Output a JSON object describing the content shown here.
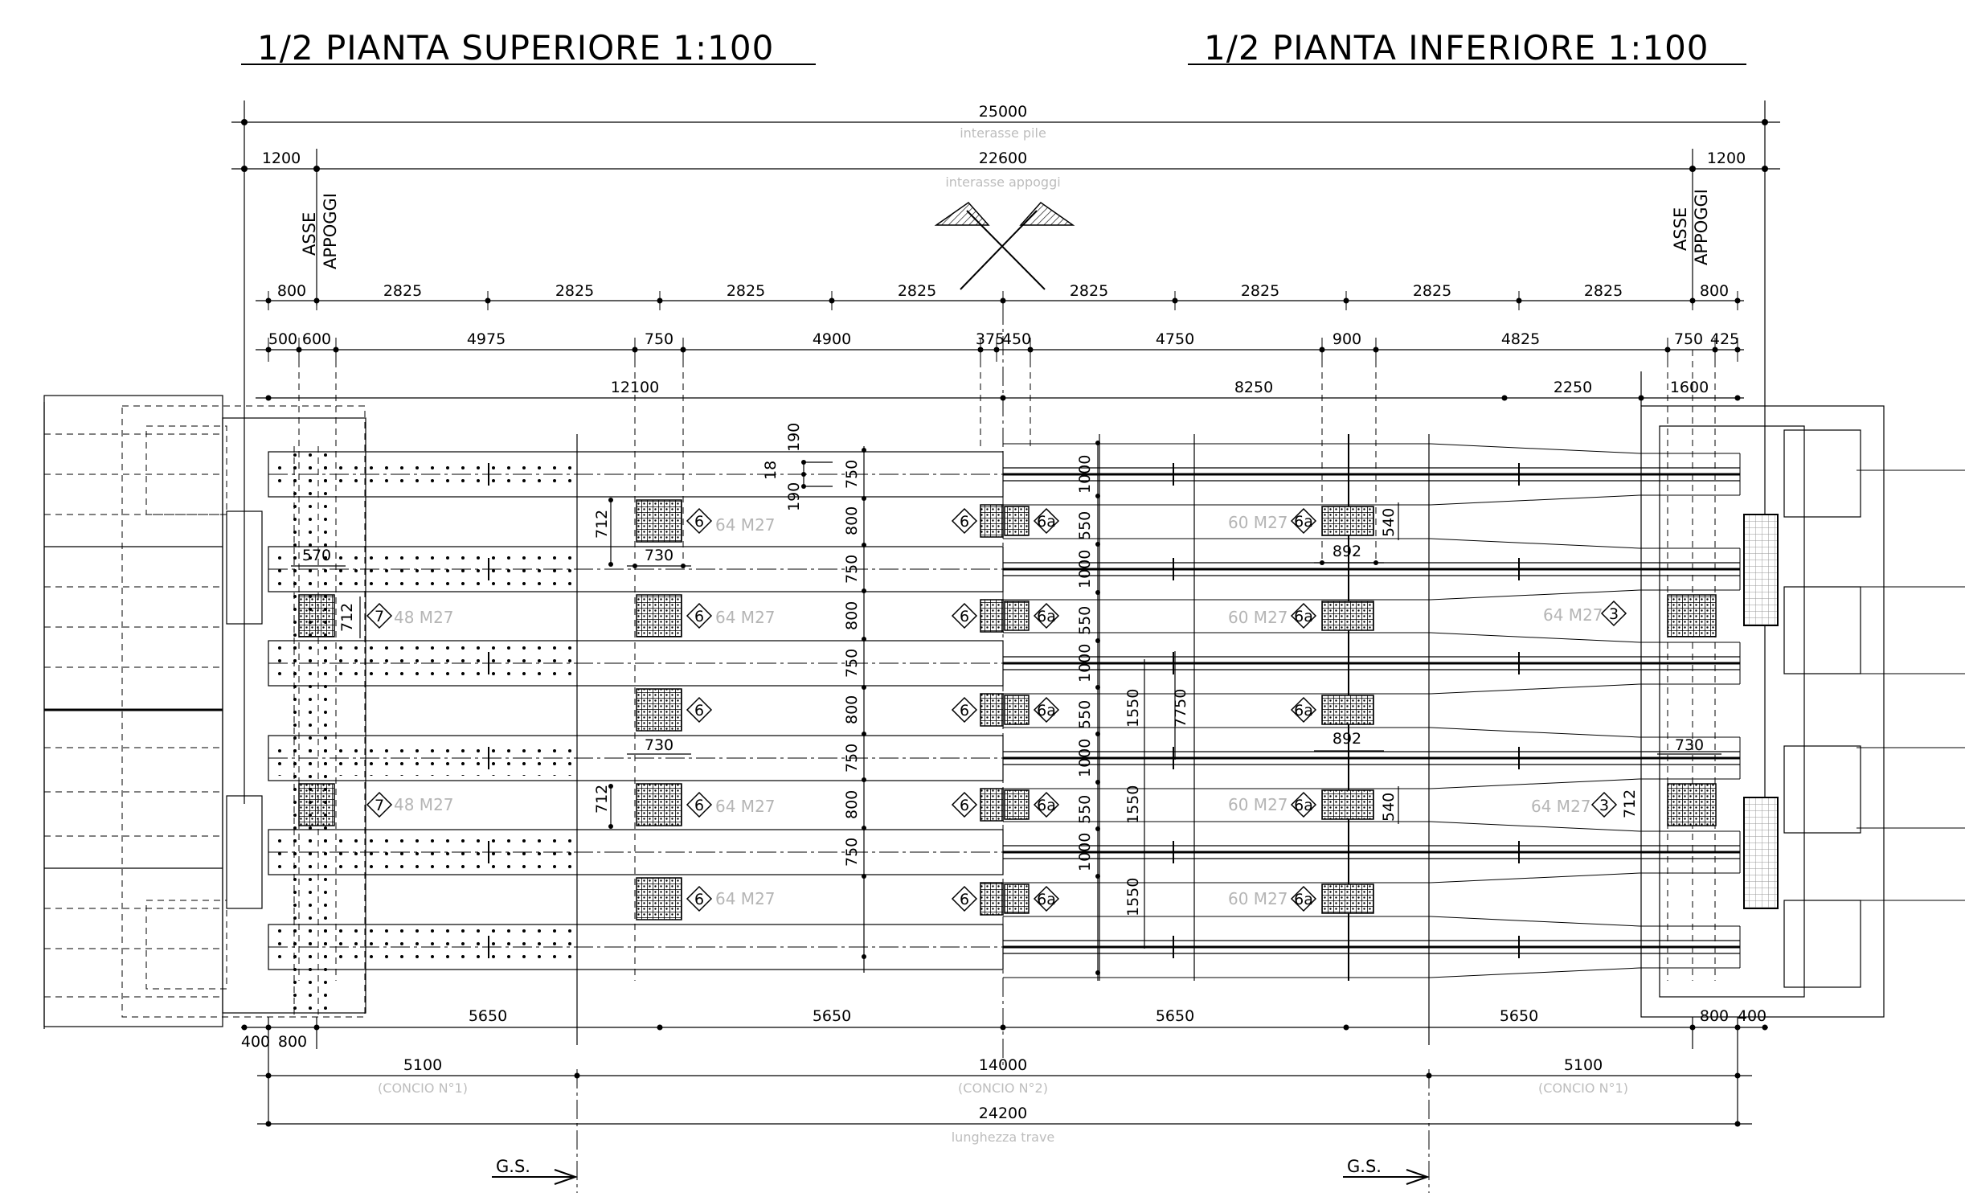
{
  "titles": {
    "left": "1/2 PIANTA SUPERIORE    1:100",
    "right": "1/2 PIANTA INFERIORE    1:100"
  },
  "top_dims": {
    "total": "25000",
    "total_sub": "interasse pile",
    "bearing": "22600",
    "bearing_sub": "interasse appoggi",
    "end_left": "1200",
    "end_right": "1200"
  },
  "asse_label_1": "ASSE",
  "asse_label_2": "APPOGGI",
  "row_2825": [
    "800",
    "2825",
    "2825",
    "2825",
    "2825",
    "2825",
    "2825",
    "2825",
    "2825",
    "800"
  ],
  "row_splice": [
    "500",
    "600",
    "4975",
    "750",
    "4900",
    "375",
    "450",
    "4750",
    "900",
    "4825",
    "750",
    "425"
  ],
  "row_segments": [
    "12100",
    "8250",
    "2250",
    "1600"
  ],
  "beam_dims": [
    "750",
    "800",
    "750",
    "800",
    "750",
    "800",
    "750",
    "800",
    "750"
  ],
  "right_dims": [
    "1000",
    "550",
    "1000",
    "550",
    "1000",
    "550",
    "1000",
    "550",
    "1000"
  ],
  "small_dims": {
    "d190a": "190",
    "d18": "18",
    "d190b": "190",
    "d712": "712",
    "d730": "730",
    "d570": "570",
    "d892": "892",
    "d540": "540",
    "d1550": "1550",
    "d7750": "7750"
  },
  "bolt_labels": {
    "m64": "64 M27",
    "m48": "48 M27",
    "m60": "60 M27"
  },
  "tags": {
    "t6": "6",
    "t6a": "6a",
    "t7": "7",
    "t3": "3"
  },
  "bottom_dims": {
    "row1": [
      "400",
      "800",
      "5650",
      "5650",
      "5650",
      "5650",
      "800",
      "400"
    ],
    "c1": "5100",
    "c1_sub": "(CONCIO N°1)",
    "c2": "14000",
    "c2_sub": "(CONCIO N°2)",
    "c3": "5100",
    "c3_sub": "(CONCIO N°1)",
    "length": "24200",
    "length_sub": "lunghezza trave"
  },
  "gs_label": "G.S."
}
